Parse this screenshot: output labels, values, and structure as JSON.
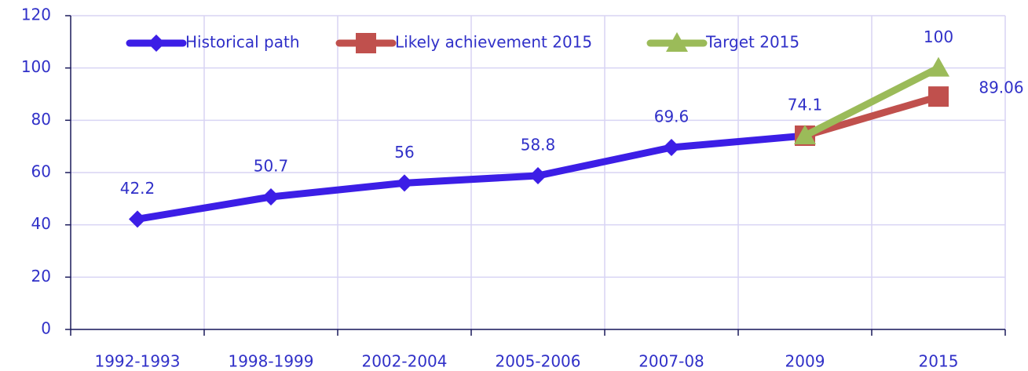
{
  "chart_data": {
    "type": "line",
    "categories": [
      "1992-1993",
      "1998-1999",
      "2002-2004",
      "2005-2006",
      "2007-08",
      "2009",
      "2015"
    ],
    "series": [
      {
        "name": "Historical path",
        "color": "#3c1ee6",
        "marker": "diamond",
        "values": [
          42.2,
          50.7,
          56,
          58.8,
          69.6,
          74.1,
          null
        ],
        "value_labels": [
          "42.2",
          "50.7",
          "56",
          "58.8",
          "69.6",
          "74.1",
          null
        ]
      },
      {
        "name": "Likely achievement 2015",
        "color": "#c0504d",
        "marker": "square",
        "values": [
          null,
          null,
          null,
          null,
          null,
          74.1,
          89.06
        ],
        "value_labels": [
          null,
          null,
          null,
          null,
          null,
          null,
          "89.06"
        ]
      },
      {
        "name": "Target 2015",
        "color": "#9bbb59",
        "marker": "triangle",
        "values": [
          null,
          null,
          null,
          null,
          null,
          74.1,
          100
        ],
        "value_labels": [
          null,
          null,
          null,
          null,
          null,
          null,
          "100"
        ]
      }
    ],
    "ylim": [
      0,
      120
    ],
    "yticks": [
      0,
      20,
      40,
      60,
      80,
      100,
      120
    ],
    "grid": true,
    "legend": "top"
  }
}
